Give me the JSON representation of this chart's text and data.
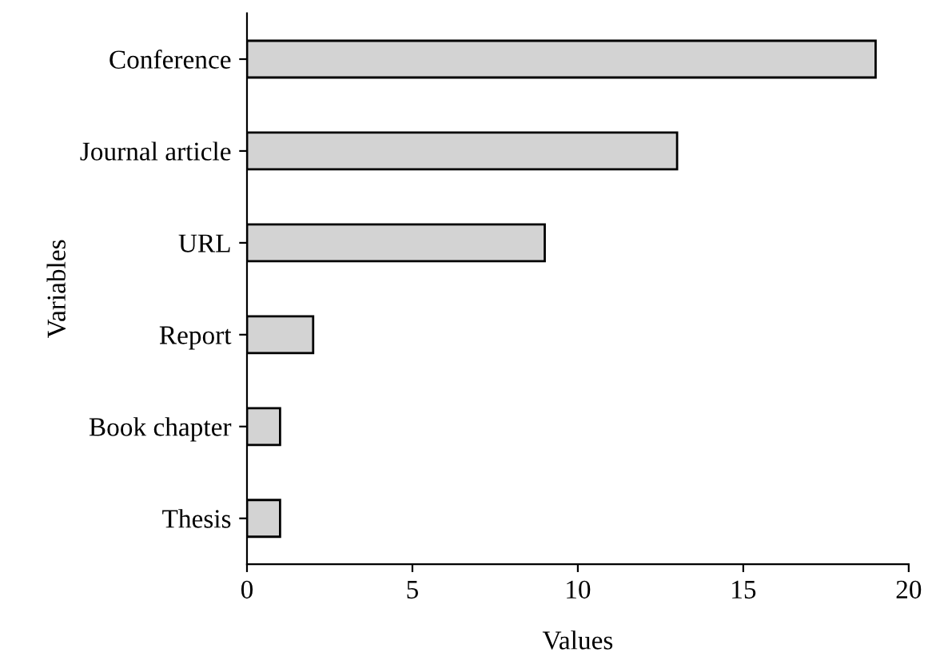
{
  "chart_data": {
    "type": "bar",
    "orientation": "horizontal",
    "xlabel": "Values",
    "ylabel": "Variables",
    "categories": [
      "Conference",
      "Journal article",
      "URL",
      "Report",
      "Book chapter",
      "Thesis"
    ],
    "values": [
      19,
      13,
      9,
      2,
      1,
      1
    ],
    "color": "#d3d3d3",
    "xlim": [
      0,
      20
    ],
    "xticks": [
      0,
      5,
      10,
      15,
      20
    ],
    "grid": false,
    "legend": false
  }
}
